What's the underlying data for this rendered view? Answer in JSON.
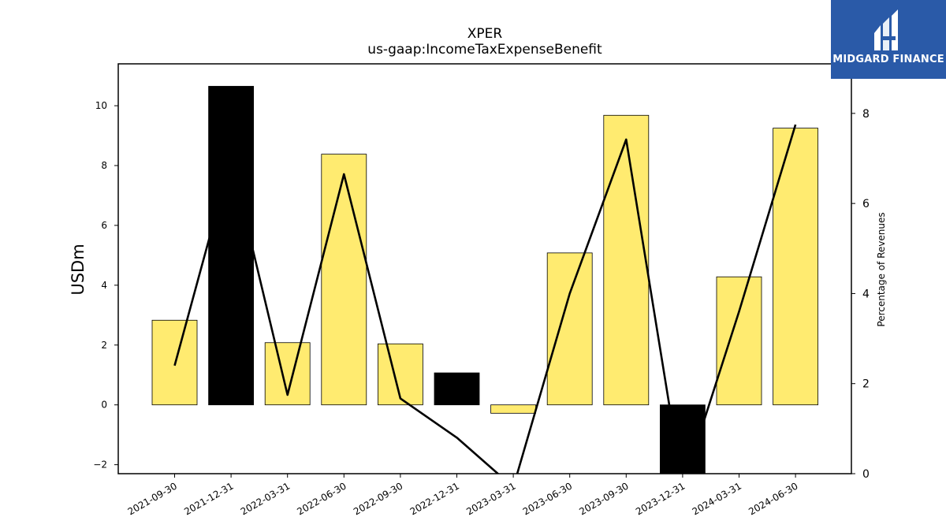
{
  "chart_data": {
    "type": "bar",
    "title": "XPER",
    "subtitle": "us-gaap:IncomeTaxExpenseBenefit",
    "ylabel": "USDm",
    "y2label": "Percentage of Revenues",
    "categories": [
      "2021-09-30",
      "2021-12-31",
      "2022-03-31",
      "2022-06-30",
      "2022-09-30",
      "2022-12-31",
      "2023-03-31",
      "2023-06-30",
      "2023-09-30",
      "2023-12-31",
      "2024-03-31",
      "2024-06-30"
    ],
    "series": [
      {
        "values": [
          2.83,
          10.65,
          2.08,
          8.38,
          2.04,
          1.07,
          -0.28,
          5.08,
          9.68,
          -2.3,
          4.28,
          9.25
        ],
        "colors": [
          "#ffeb70",
          "#000000",
          "#ffeb70",
          "#ffeb70",
          "#ffeb70",
          "#000000",
          "#ffeb70",
          "#ffeb70",
          "#ffeb70",
          "#000000",
          "#ffeb70",
          "#ffeb70"
        ]
      },
      {
        "axis": "right",
        "type": "line",
        "values": [
          2.4,
          7.0,
          1.75,
          6.65,
          1.67,
          0.8,
          -0.3,
          4.0,
          7.42,
          -0.3,
          3.6,
          7.75
        ]
      }
    ],
    "ylim": [
      -2.3,
      11.4
    ],
    "y2lim": [
      0,
      9.1
    ],
    "yticks": [
      -2,
      0,
      2,
      4,
      6,
      8,
      10
    ],
    "y2ticks": [
      0,
      2,
      4,
      6,
      8
    ],
    "grid": false
  },
  "logo": {
    "text": "MIDGARD FINANCE",
    "color": "#2a5aa8"
  }
}
